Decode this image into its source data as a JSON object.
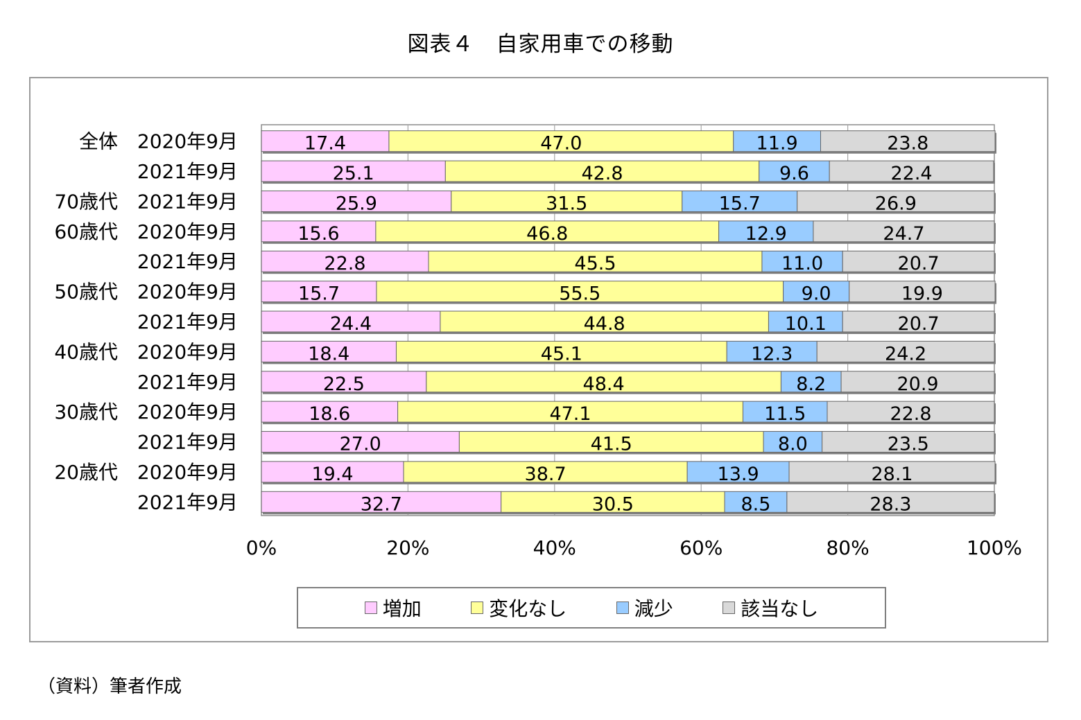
{
  "title": "図表４　自家用車での移動",
  "source": "（資料）筆者作成",
  "chart_data": {
    "type": "bar",
    "orientation": "horizontal",
    "stacked": "percent",
    "row_groups": [
      "全体",
      "",
      "70歳代",
      "60歳代",
      "",
      "50歳代",
      "",
      "40歳代",
      "",
      "30歳代",
      "",
      "20歳代",
      ""
    ],
    "categories": [
      "2020年9月",
      "2021年9月",
      "2021年9月",
      "2020年9月",
      "2021年9月",
      "2020年9月",
      "2021年9月",
      "2020年9月",
      "2021年9月",
      "2020年9月",
      "2021年9月",
      "2020年9月",
      "2021年9月"
    ],
    "series": [
      {
        "name": "増加",
        "color": "#ffccff",
        "values": [
          17.4,
          25.1,
          25.9,
          15.6,
          22.8,
          15.7,
          24.4,
          18.4,
          22.5,
          18.6,
          27.0,
          19.4,
          32.7
        ]
      },
      {
        "name": "変化なし",
        "color": "#ffff99",
        "values": [
          47.0,
          42.8,
          31.5,
          46.8,
          45.5,
          55.5,
          44.8,
          45.1,
          48.4,
          47.1,
          41.5,
          38.7,
          30.5
        ]
      },
      {
        "name": "減少",
        "color": "#99ccff",
        "values": [
          11.9,
          9.6,
          15.7,
          12.9,
          11.0,
          9.0,
          10.1,
          12.3,
          8.2,
          11.5,
          8.0,
          13.9,
          8.5
        ]
      },
      {
        "name": "該当なし",
        "color": "#d9d9d9",
        "values": [
          23.8,
          22.4,
          26.9,
          24.7,
          20.7,
          19.9,
          20.7,
          24.2,
          20.9,
          22.8,
          23.5,
          28.1,
          28.3
        ]
      }
    ],
    "value_labels": [
      [
        "17.4",
        "25.1",
        "25.9",
        "15.6",
        "22.8",
        "15.7",
        "24.4",
        "18.4",
        "22.5",
        "18.6",
        "27.0",
        "19.4",
        "32.7"
      ],
      [
        "47.0",
        "42.8",
        "31.5",
        "46.8",
        "45.5",
        "55.5",
        "44.8",
        "45.1",
        "48.4",
        "47.1",
        "41.5",
        "38.7",
        "30.5"
      ],
      [
        "11.9",
        "9.6",
        "15.7",
        "12.9",
        "11.0",
        "9.0",
        "10.1",
        "12.3",
        "8.2",
        "11.5",
        "8.0",
        "13.9",
        "8.5"
      ],
      [
        "23.8",
        "22.4",
        "26.9",
        "24.7",
        "20.7",
        "19.9",
        "20.7",
        "24.2",
        "20.9",
        "22.8",
        "23.5",
        "28.1",
        "28.3"
      ]
    ],
    "xlim": [
      0,
      100
    ],
    "x_ticks": [
      "0%",
      "20%",
      "40%",
      "60%",
      "80%",
      "100%"
    ],
    "grid": true,
    "legend_position": "bottom"
  }
}
